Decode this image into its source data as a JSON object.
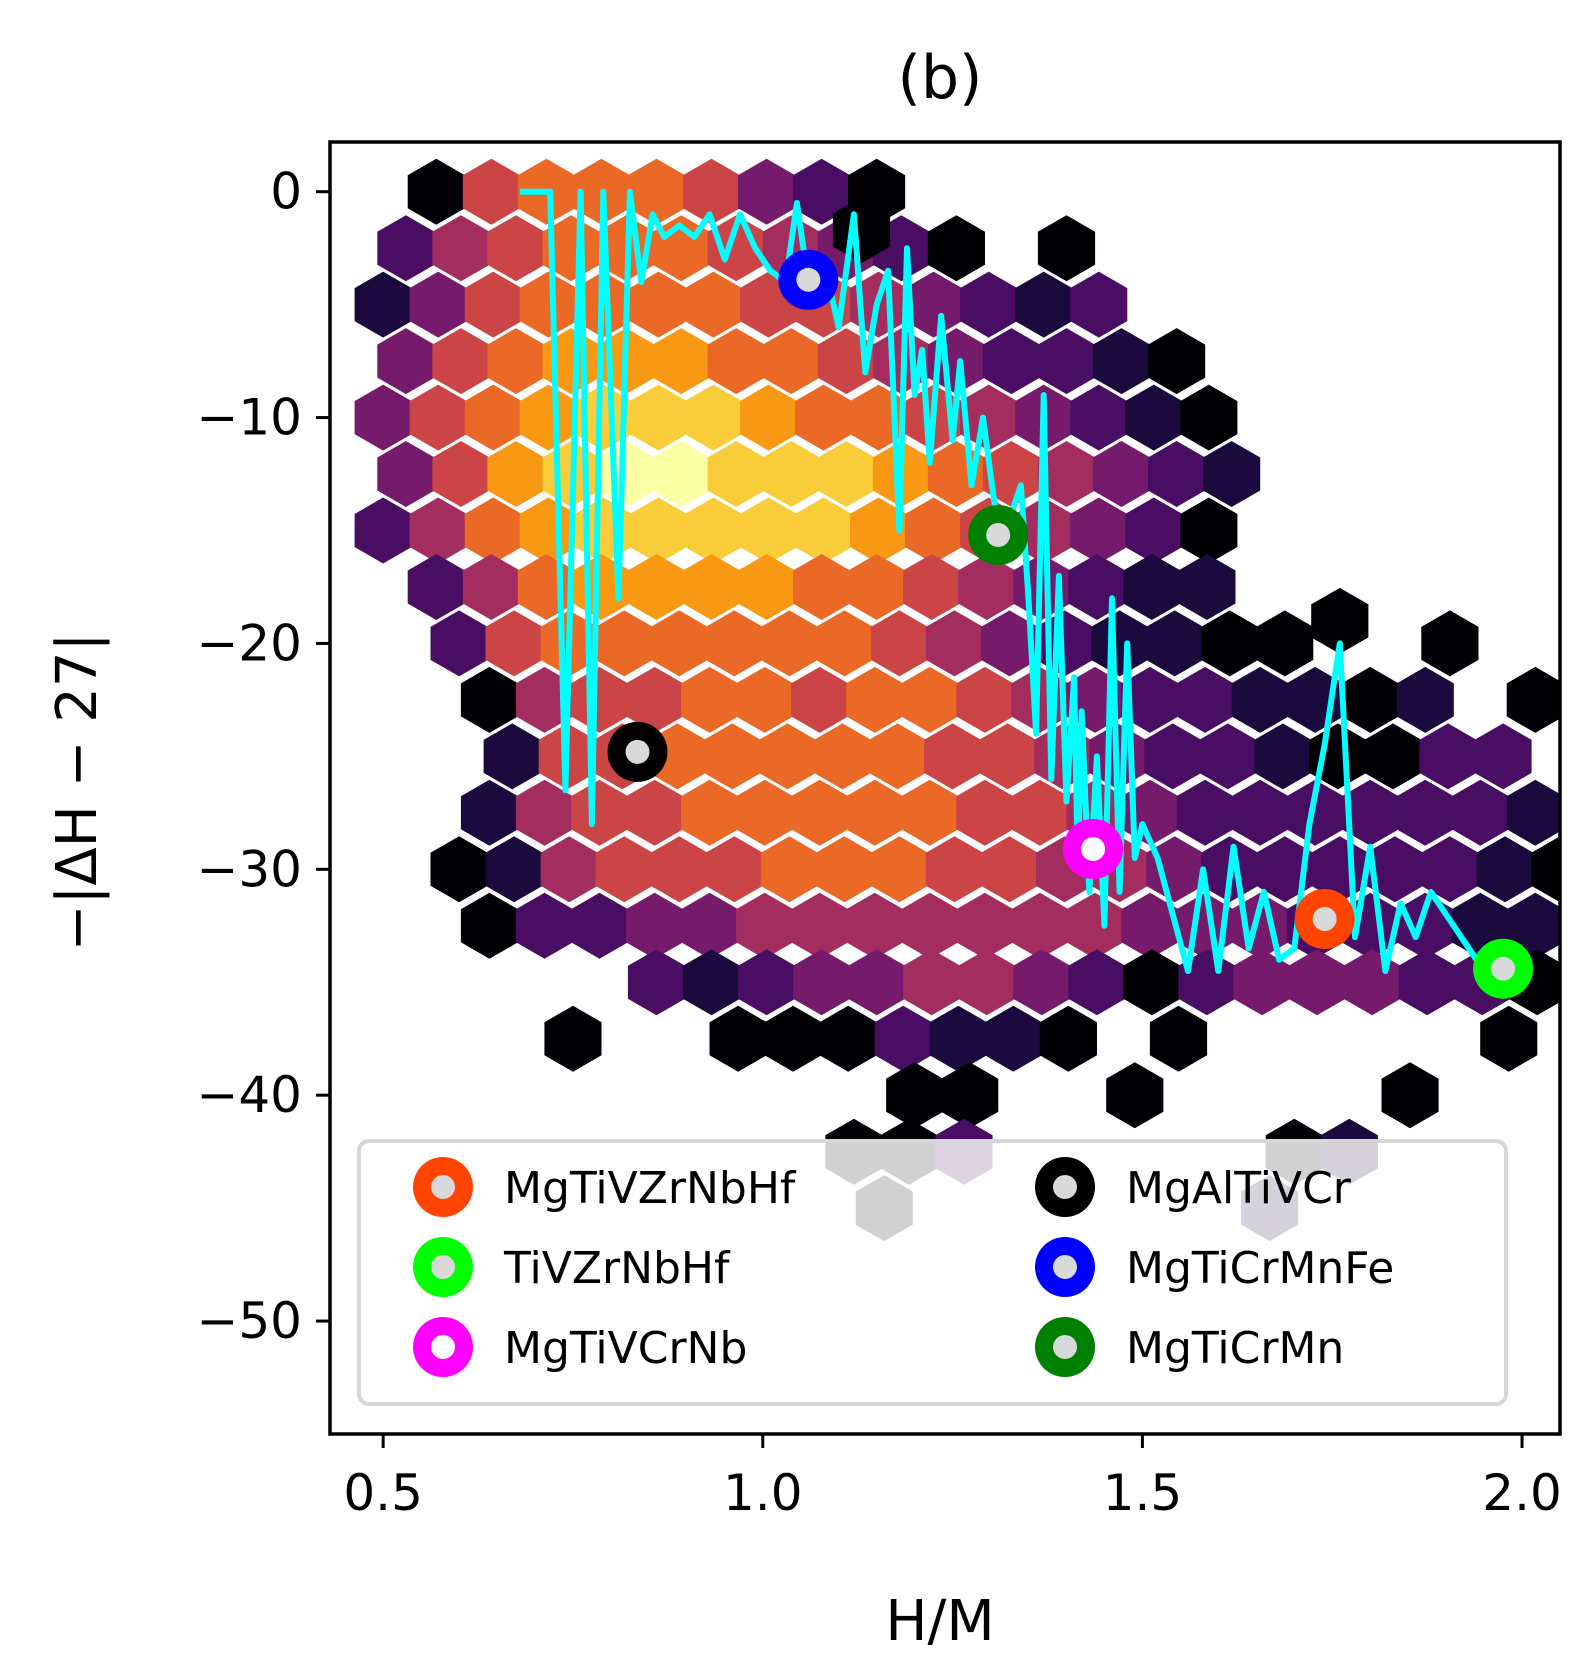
{
  "chart_data": {
    "type": "hexbin",
    "title": "(b)",
    "xlabel": "H/M",
    "ylabel": "−|ΔH − 27|",
    "xlim": [
      0.43,
      2.05
    ],
    "ylim": [
      -55,
      2.2
    ],
    "xticks": [
      0.5,
      1.0,
      1.5,
      2.0
    ],
    "xtick_labels": [
      "0.5",
      "1.0",
      "1.5",
      "2.0"
    ],
    "yticks": [
      0,
      -10,
      -20,
      -30,
      -40,
      -50
    ],
    "ytick_labels": [
      "0",
      "−10",
      "−20",
      "−30",
      "−40",
      "−50"
    ],
    "grid": false,
    "colormap": "inferno",
    "legend_placement": "lower center",
    "hexbin_rows": [
      {
        "y": 0.0,
        "x_start": 0.57,
        "counts": [
          1,
          6,
          7,
          7,
          7,
          6,
          4,
          3,
          1
        ]
      },
      {
        "y": -2.5,
        "x_start": 0.53,
        "counts": [
          3,
          5,
          6,
          7,
          7,
          7,
          6,
          5,
          4,
          3,
          1,
          0,
          1
        ]
      },
      {
        "y": -5.0,
        "x_start": 0.5,
        "counts": [
          2,
          4,
          6,
          7,
          7,
          7,
          7,
          6,
          6,
          5,
          4,
          3,
          2,
          3
        ]
      },
      {
        "y": -7.5,
        "x_start": 0.53,
        "counts": [
          4,
          6,
          7,
          8,
          8,
          8,
          7,
          7,
          6,
          5,
          4,
          3,
          3,
          2,
          1
        ]
      },
      {
        "y": -10.0,
        "x_start": 0.5,
        "counts": [
          4,
          6,
          7,
          8,
          9,
          9,
          9,
          8,
          7,
          7,
          6,
          5,
          4,
          3,
          2,
          1
        ]
      },
      {
        "y": -12.5,
        "x_start": 0.53,
        "counts": [
          4,
          6,
          8,
          9,
          10,
          10,
          9,
          9,
          9,
          8,
          7,
          6,
          5,
          4,
          3,
          2
        ]
      },
      {
        "y": -15.0,
        "x_start": 0.5,
        "counts": [
          3,
          5,
          7,
          8,
          9,
          9,
          9,
          9,
          9,
          8,
          7,
          6,
          5,
          4,
          3,
          1
        ]
      },
      {
        "y": -17.5,
        "x_start": 0.57,
        "counts": [
          3,
          5,
          7,
          8,
          8,
          8,
          8,
          7,
          7,
          6,
          5,
          4,
          3,
          2,
          2
        ]
      },
      {
        "y": -20.0,
        "x_start": 0.6,
        "counts": [
          3,
          6,
          7,
          7,
          7,
          7,
          7,
          7,
          6,
          5,
          4,
          3,
          2,
          2,
          1,
          1,
          0,
          0,
          1
        ]
      },
      {
        "y": -22.5,
        "x_start": 0.64,
        "counts": [
          1,
          5,
          6,
          6,
          7,
          7,
          6,
          7,
          7,
          6,
          5,
          4,
          3,
          3,
          2,
          2,
          1,
          2,
          0,
          1
        ]
      },
      {
        "y": -25.0,
        "x_start": 0.67,
        "counts": [
          2,
          6,
          6,
          7,
          7,
          7,
          7,
          7,
          6,
          6,
          5,
          4,
          3,
          3,
          2,
          1,
          1,
          3,
          3
        ]
      },
      {
        "y": -27.5,
        "x_start": 0.64,
        "counts": [
          2,
          5,
          6,
          6,
          7,
          7,
          7,
          7,
          7,
          6,
          6,
          5,
          4,
          3,
          3,
          3,
          3,
          3,
          3,
          2
        ]
      },
      {
        "y": -30.0,
        "x_start": 0.6,
        "counts": [
          1,
          2,
          5,
          6,
          6,
          6,
          7,
          7,
          7,
          6,
          6,
          5,
          5,
          4,
          3,
          3,
          3,
          3,
          3,
          2,
          1,
          1,
          1
        ]
      },
      {
        "y": -32.5,
        "x_start": 0.64,
        "counts": [
          1,
          3,
          3,
          4,
          4,
          5,
          5,
          5,
          5,
          5,
          5,
          5,
          4,
          4,
          4,
          3,
          3,
          3,
          2,
          2,
          3,
          1,
          1
        ]
      },
      {
        "y": -35.0,
        "x_start": 0.86,
        "counts": [
          3,
          2,
          3,
          4,
          4,
          5,
          5,
          4,
          3,
          1,
          3,
          4,
          4,
          4,
          3,
          3,
          1,
          1
        ]
      },
      {
        "y": -37.5,
        "x_start": 0.75,
        "counts": [
          1,
          0,
          0,
          1,
          1,
          1,
          3,
          2,
          2,
          1,
          0,
          1,
          0,
          0,
          0,
          0,
          0,
          1
        ]
      },
      {
        "y": -40.0,
        "x_start": 1.2,
        "counts": [
          1,
          1,
          0,
          0,
          1,
          0,
          0,
          0,
          0,
          1
        ]
      },
      {
        "y": -42.5,
        "x_start": 1.12,
        "counts": [
          1,
          1,
          3,
          0,
          0,
          0,
          0,
          0,
          1,
          2
        ]
      },
      {
        "y": -45.0,
        "x_start": 1.16,
        "counts": [
          1,
          0,
          0,
          0,
          0,
          0,
          0,
          2
        ]
      }
    ],
    "extra_hex_bins": [
      {
        "x": 1.76,
        "y": -19.0,
        "count": 1
      },
      {
        "x": 1.13,
        "y": -1.7,
        "count": 1
      }
    ],
    "trajectory": {
      "color": "#00ffff",
      "x": [
        0.68,
        0.72,
        0.74,
        0.76,
        0.775,
        0.79,
        0.81,
        0.825,
        0.84,
        0.855,
        0.87,
        0.89,
        0.91,
        0.93,
        0.95,
        0.97,
        0.99,
        1.01,
        1.03,
        1.045,
        1.06,
        1.08,
        1.1,
        1.12,
        1.135,
        1.15,
        1.165,
        1.18,
        1.19,
        1.2,
        1.21,
        1.22,
        1.235,
        1.25,
        1.26,
        1.275,
        1.29,
        1.31,
        1.325,
        1.34,
        1.35,
        1.36,
        1.37,
        1.38,
        1.39,
        1.4,
        1.41,
        1.415,
        1.42,
        1.43,
        1.44,
        1.45,
        1.46,
        1.47,
        1.48,
        1.49,
        1.5,
        1.52,
        1.54,
        1.56,
        1.58,
        1.6,
        1.62,
        1.64,
        1.66,
        1.68,
        1.7,
        1.72,
        1.74,
        1.76,
        1.78,
        1.8,
        1.82,
        1.84,
        1.86,
        1.88,
        1.9,
        1.94,
        1.98
      ],
      "y": [
        0.0,
        0.0,
        -26.5,
        0.0,
        -28.0,
        0.0,
        -18.0,
        0.0,
        -4.0,
        -1.0,
        -2.0,
        -1.5,
        -2.0,
        -1.0,
        -3.0,
        -1.0,
        -2.5,
        -3.5,
        -4.0,
        -0.5,
        -4.0,
        -3.0,
        -6.0,
        -1.0,
        -8.0,
        -5.0,
        -3.5,
        -15.0,
        -2.5,
        -9.0,
        -7.0,
        -12.0,
        -5.5,
        -11.0,
        -7.5,
        -13.0,
        -10.0,
        -15.0,
        -14.5,
        -13.0,
        -18.0,
        -24.0,
        -9.0,
        -26.0,
        -17.0,
        -27.0,
        -21.5,
        -30.0,
        -23.0,
        -31.0,
        -25.0,
        -32.5,
        -18.0,
        -31.0,
        -20.0,
        -29.5,
        -28.0,
        -29.5,
        -32.0,
        -34.5,
        -30.0,
        -34.5,
        -29.0,
        -33.5,
        -31.0,
        -34.0,
        -33.5,
        -28.0,
        -24.5,
        -20.0,
        -33.0,
        -29.0,
        -34.5,
        -31.5,
        -33.0,
        -31.0,
        -32.0,
        -34.0,
        -34.5
      ]
    },
    "highlighted_points": [
      {
        "label": "MgTiVZrNbHf",
        "x": 1.74,
        "y": -32.2,
        "ring_color": "#ff4500",
        "center_color": "#d9d9d9"
      },
      {
        "label": "TiVZrNbHf",
        "x": 1.975,
        "y": -34.4,
        "ring_color": "#00ff00",
        "center_color": "#d9d9d9"
      },
      {
        "label": "MgTiVCrNb",
        "x": 1.435,
        "y": -29.1,
        "ring_color": "#ff00ff",
        "center_color": "#ffffff"
      },
      {
        "label": "MgAlTiVCr",
        "x": 0.835,
        "y": -24.8,
        "ring_color": "#000000",
        "center_color": "#d9d9d9"
      },
      {
        "label": "MgTiCrMnFe",
        "x": 1.06,
        "y": -3.9,
        "ring_color": "#0000ff",
        "center_color": "#d9d9d9"
      },
      {
        "label": "MgTiCrMn",
        "x": 1.31,
        "y": -15.2,
        "ring_color": "#008000",
        "center_color": "#d9d9d9"
      }
    ]
  }
}
